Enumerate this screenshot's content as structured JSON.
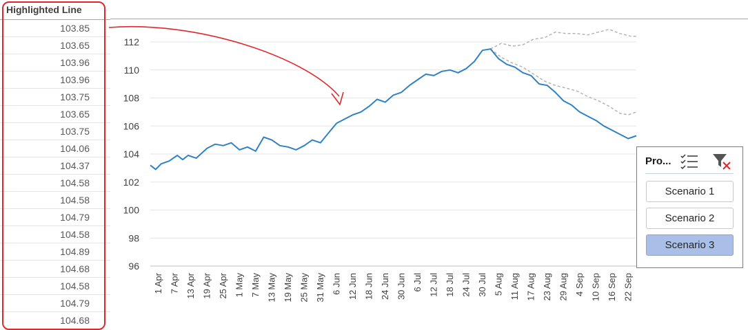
{
  "column": {
    "header": "Highlighted Line",
    "values": [
      "103.85",
      "103.65",
      "103.96",
      "103.96",
      "103.75",
      "103.65",
      "103.75",
      "104.06",
      "104.37",
      "104.58",
      "104.58",
      "104.79",
      "104.58",
      "104.89",
      "104.68",
      "104.58",
      "104.79",
      "104.68"
    ]
  },
  "slicer": {
    "title": "Pro...",
    "items": [
      {
        "label": "Scenario 1",
        "selected": false
      },
      {
        "label": "Scenario 2",
        "selected": false
      },
      {
        "label": "Scenario 3",
        "selected": true
      }
    ]
  },
  "chart_data": {
    "type": "line",
    "ylim": [
      96,
      112
    ],
    "yticks": [
      96,
      98,
      100,
      102,
      104,
      106,
      108,
      110,
      112
    ],
    "x_range": [
      "2021-04-01",
      "2021-09-28"
    ],
    "categories": [
      "1 Apr",
      "7 Apr",
      "13 Apr",
      "19 Apr",
      "25 Apr",
      "1 May",
      "7 May",
      "13 May",
      "19 May",
      "25 May",
      "31 May",
      "6 Jun",
      "12 Jun",
      "18 Jun",
      "24 Jun",
      "30 Jun",
      "6 Jul",
      "12 Jul",
      "18 Jul",
      "24 Jul",
      "30 Jul",
      "5 Aug",
      "11 Aug",
      "17 Aug",
      "23 Aug",
      "29 Aug",
      "4 Sep",
      "10 Sep",
      "16 Sep",
      "22 Sep"
    ],
    "grid": true,
    "legend": "none",
    "series": [
      {
        "color": "#2f80c5",
        "style": "solid",
        "points": [
          [
            "2021-04-01",
            103.2
          ],
          [
            "2021-04-03",
            102.9
          ],
          [
            "2021-04-05",
            103.3
          ],
          [
            "2021-04-08",
            103.5
          ],
          [
            "2021-04-11",
            103.9
          ],
          [
            "2021-04-13",
            103.6
          ],
          [
            "2021-04-15",
            103.9
          ],
          [
            "2021-04-18",
            103.7
          ],
          [
            "2021-04-22",
            104.4
          ],
          [
            "2021-04-25",
            104.7
          ],
          [
            "2021-04-28",
            104.6
          ],
          [
            "2021-05-01",
            104.8
          ],
          [
            "2021-05-04",
            104.3
          ],
          [
            "2021-05-07",
            104.5
          ],
          [
            "2021-05-10",
            104.2
          ],
          [
            "2021-05-13",
            105.2
          ],
          [
            "2021-05-16",
            105.0
          ],
          [
            "2021-05-19",
            104.6
          ],
          [
            "2021-05-22",
            104.5
          ],
          [
            "2021-05-25",
            104.3
          ],
          [
            "2021-05-28",
            104.6
          ],
          [
            "2021-05-31",
            105.0
          ],
          [
            "2021-06-03",
            104.8
          ],
          [
            "2021-06-06",
            105.5
          ],
          [
            "2021-06-09",
            106.2
          ],
          [
            "2021-06-12",
            106.5
          ],
          [
            "2021-06-15",
            106.8
          ],
          [
            "2021-06-18",
            107.0
          ],
          [
            "2021-06-21",
            107.4
          ],
          [
            "2021-06-24",
            107.9
          ],
          [
            "2021-06-27",
            107.7
          ],
          [
            "2021-06-30",
            108.2
          ],
          [
            "2021-07-03",
            108.4
          ],
          [
            "2021-07-06",
            108.9
          ],
          [
            "2021-07-09",
            109.3
          ],
          [
            "2021-07-12",
            109.7
          ],
          [
            "2021-07-15",
            109.6
          ],
          [
            "2021-07-18",
            109.9
          ],
          [
            "2021-07-21",
            110.0
          ],
          [
            "2021-07-24",
            109.8
          ],
          [
            "2021-07-27",
            110.1
          ],
          [
            "2021-07-30",
            110.6
          ],
          [
            "2021-08-02",
            111.4
          ],
          [
            "2021-08-05",
            111.5
          ],
          [
            "2021-08-08",
            110.8
          ],
          [
            "2021-08-11",
            110.4
          ],
          [
            "2021-08-14",
            110.2
          ],
          [
            "2021-08-17",
            109.8
          ],
          [
            "2021-08-20",
            109.6
          ],
          [
            "2021-08-23",
            109.0
          ],
          [
            "2021-08-26",
            108.9
          ],
          [
            "2021-08-29",
            108.4
          ],
          [
            "2021-09-01",
            107.8
          ],
          [
            "2021-09-04",
            107.5
          ],
          [
            "2021-09-07",
            107.0
          ],
          [
            "2021-09-10",
            106.7
          ],
          [
            "2021-09-13",
            106.4
          ],
          [
            "2021-09-16",
            106.0
          ],
          [
            "2021-09-19",
            105.7
          ],
          [
            "2021-09-22",
            105.4
          ],
          [
            "2021-09-25",
            105.1
          ],
          [
            "2021-09-28",
            105.3
          ]
        ]
      },
      {
        "color": "#b3b3b3",
        "style": "dashed",
        "points": [
          [
            "2021-08-05",
            111.5
          ],
          [
            "2021-08-09",
            111.9
          ],
          [
            "2021-08-13",
            111.7
          ],
          [
            "2021-08-17",
            111.8
          ],
          [
            "2021-08-21",
            112.2
          ],
          [
            "2021-08-25",
            112.3
          ],
          [
            "2021-08-29",
            112.7
          ],
          [
            "2021-09-02",
            112.6
          ],
          [
            "2021-09-06",
            112.6
          ],
          [
            "2021-09-10",
            112.5
          ],
          [
            "2021-09-14",
            112.7
          ],
          [
            "2021-09-18",
            112.9
          ],
          [
            "2021-09-22",
            112.6
          ],
          [
            "2021-09-26",
            112.4
          ],
          [
            "2021-09-28",
            112.4
          ]
        ]
      },
      {
        "color": "#b3b3b3",
        "style": "dashed",
        "points": [
          [
            "2021-08-05",
            111.5
          ],
          [
            "2021-08-09",
            110.9
          ],
          [
            "2021-08-13",
            110.5
          ],
          [
            "2021-08-17",
            110.2
          ],
          [
            "2021-08-21",
            109.7
          ],
          [
            "2021-08-25",
            109.2
          ],
          [
            "2021-08-29",
            108.9
          ],
          [
            "2021-09-02",
            108.7
          ],
          [
            "2021-09-06",
            108.5
          ],
          [
            "2021-09-10",
            108.1
          ],
          [
            "2021-09-14",
            107.8
          ],
          [
            "2021-09-18",
            107.4
          ],
          [
            "2021-09-22",
            106.9
          ],
          [
            "2021-09-25",
            106.8
          ],
          [
            "2021-09-28",
            107.0
          ]
        ]
      }
    ],
    "annotation": {
      "type": "arrow",
      "color": "#e0262b"
    }
  }
}
